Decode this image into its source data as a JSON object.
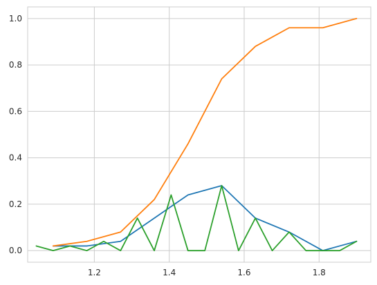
{
  "chart_data": {
    "type": "line",
    "title": "",
    "xlabel": "",
    "ylabel": "",
    "xlim": [
      1.022,
      1.938
    ],
    "ylim": [
      -0.05,
      1.05
    ],
    "grid": true,
    "x_ticks": [
      1.2,
      1.4,
      1.6,
      1.8
    ],
    "y_ticks": [
      0.0,
      0.2,
      0.4,
      0.6,
      0.8,
      1.0
    ],
    "x_tick_labels": [
      "1.2",
      "1.4",
      "1.6",
      "1.8"
    ],
    "y_tick_labels": [
      "0.0",
      "0.2",
      "0.4",
      "0.6",
      "0.8",
      "1.0"
    ],
    "series": [
      {
        "color": "#1f77b4",
        "x": [
          1.09,
          1.18,
          1.27,
          1.36,
          1.45,
          1.54,
          1.63,
          1.72,
          1.81,
          1.9
        ],
        "y": [
          0.02,
          0.02,
          0.04,
          0.14,
          0.24,
          0.28,
          0.14,
          0.08,
          0.0,
          0.04
        ]
      },
      {
        "color": "#ff7f0e",
        "x": [
          1.09,
          1.18,
          1.27,
          1.36,
          1.45,
          1.54,
          1.63,
          1.72,
          1.81,
          1.9
        ],
        "y": [
          0.02,
          0.04,
          0.08,
          0.22,
          0.46,
          0.74,
          0.88,
          0.96,
          0.96,
          1.0
        ]
      },
      {
        "color": "#2ca02c",
        "x": [
          1.045,
          1.09,
          1.135,
          1.18,
          1.225,
          1.27,
          1.315,
          1.36,
          1.405,
          1.45,
          1.495,
          1.54,
          1.585,
          1.63,
          1.675,
          1.72,
          1.765,
          1.81,
          1.855,
          1.9
        ],
        "y": [
          0.02,
          0.0,
          0.02,
          0.0,
          0.04,
          0.0,
          0.14,
          0.0,
          0.24,
          0.0,
          0.0,
          0.28,
          0.0,
          0.14,
          0.0,
          0.08,
          0.0,
          0.0,
          0.0,
          0.04
        ]
      }
    ]
  }
}
